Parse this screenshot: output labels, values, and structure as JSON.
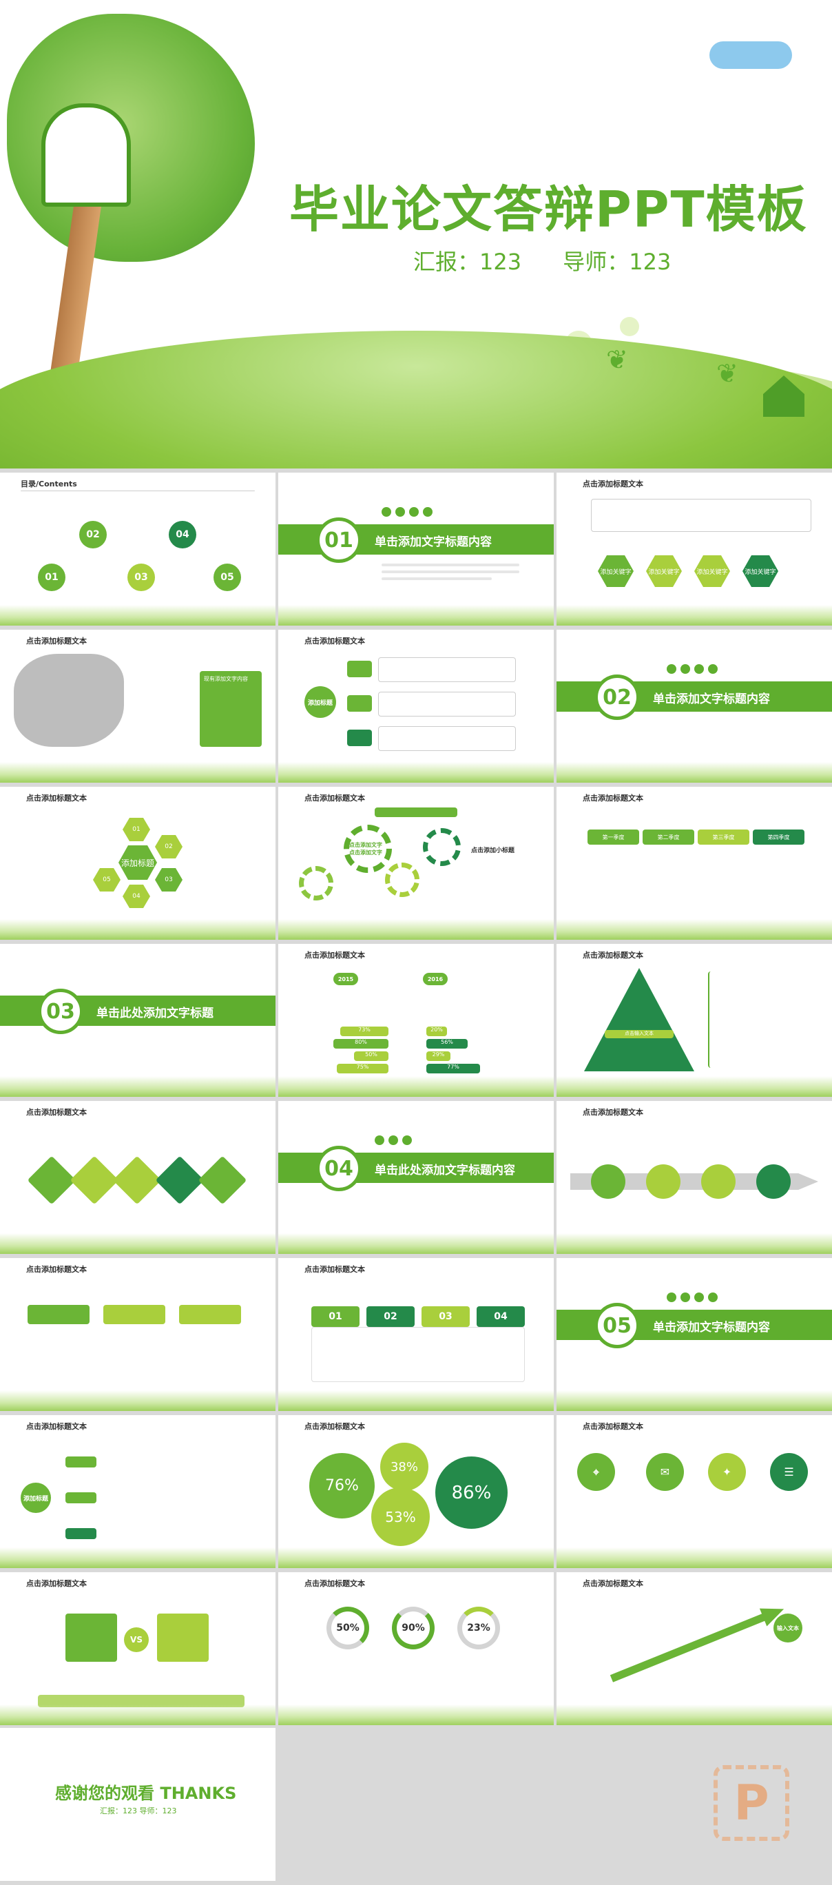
{
  "cover": {
    "title": "毕业论文答辩PPT模板",
    "reporter": "汇报：123",
    "advisor": "导师：123"
  },
  "slides": {
    "toc_title": "目录/Contents",
    "toc_items": [
      "01",
      "02",
      "03",
      "04",
      "05"
    ],
    "section_01": {
      "num": "01",
      "label": "单击添加文字标题内容"
    },
    "section_02": {
      "num": "02",
      "label": "单击添加文字标题内容"
    },
    "section_03": {
      "num": "03",
      "label": "单击此处添加文字标题"
    },
    "section_04": {
      "num": "04",
      "label": "单击此处添加文字标题内容"
    },
    "section_05": {
      "num": "05",
      "label": "单击添加文字标题内容"
    },
    "slide_title": "点击添加标题文本",
    "keyword_label": "添加关键字",
    "map_panel": "现有添加文字内容",
    "center_label": "添加标题",
    "gear_title": "点击添加小标题",
    "gear_center": "点击添加文字点击添加文字",
    "steps": [
      "第一季度",
      "第二季度",
      "第三季度",
      "第四季度"
    ],
    "years": [
      "2015",
      "2016"
    ],
    "bars_2015": [
      "73%",
      "80%",
      "50%",
      "75%"
    ],
    "bars_2016": [
      "20%",
      "56%",
      "29%",
      "77%"
    ],
    "pyramid_label": "点击输入文本",
    "cards": [
      "01",
      "02",
      "03",
      "04"
    ],
    "bubbles": [
      "76%",
      "38%",
      "53%",
      "86%"
    ],
    "donuts": [
      "50%",
      "90%",
      "23%"
    ],
    "vs": "VS",
    "arrow_text": "输入文本"
  },
  "thanks": {
    "title": "感谢您的观看 THANKS",
    "sub": "汇报：123    导师：123"
  }
}
